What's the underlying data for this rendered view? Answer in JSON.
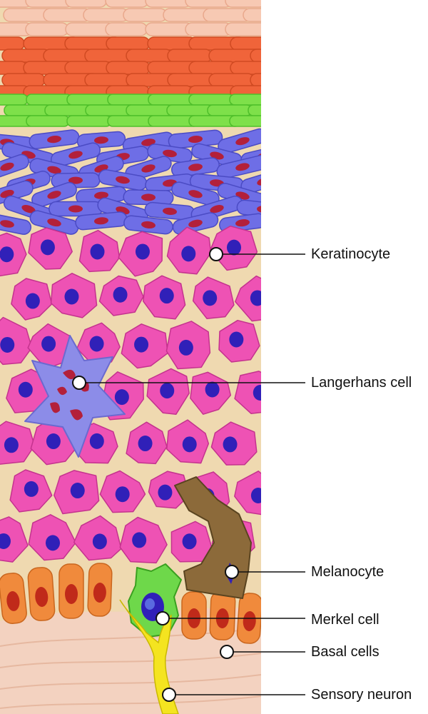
{
  "colors": {
    "stratum_corneum": "#f0643a",
    "stratum_corneum_light": "#f7c9b3",
    "stratum_lucidum": "#7ee04a",
    "stratum_granulosum": "#6e6ee6",
    "granule": "#b3203a",
    "keratinocyte": "#ee52b4",
    "nucleus": "#3020b8",
    "langerhans": "#8c8ce8",
    "melanocyte": "#8c6a3a",
    "merkel": "#6ed84a",
    "basal": "#f08a3c",
    "basal_nucleus": "#c02a1a",
    "dermis": "#f3d2c0",
    "sensory_neuron": "#f4e420",
    "interstitial": "#efd9b0"
  },
  "callouts": [
    {
      "name": "keratinocyte",
      "label": "Keratinocyte"
    },
    {
      "name": "langerhans-cell",
      "label": "Langerhans cell"
    },
    {
      "name": "melanocyte",
      "label": "Melanocyte"
    },
    {
      "name": "merkel-cell",
      "label": "Merkel cell"
    },
    {
      "name": "basal-cells",
      "label": "Basal cells"
    },
    {
      "name": "sensory-neuron",
      "label": "Sensory neuron"
    }
  ]
}
